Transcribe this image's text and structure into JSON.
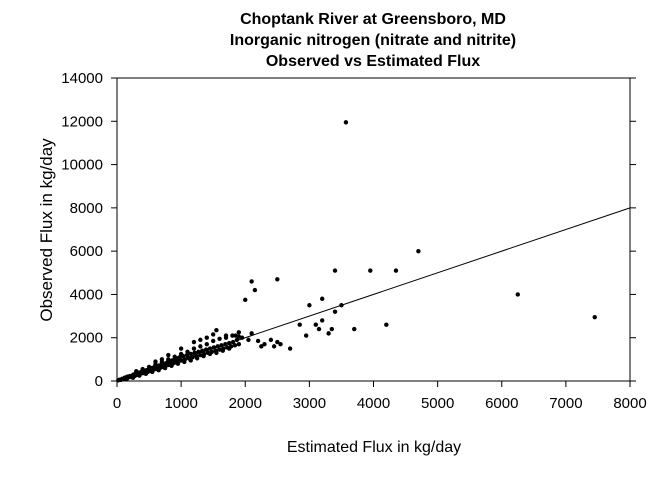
{
  "chart_data": {
    "type": "scatter",
    "title": "Choptank River at Greensboro, MD",
    "subtitle": "Inorganic nitrogen (nitrate and nitrite)",
    "subtitle2": "Observed vs Estimated Flux",
    "xlabel": "Estimated Flux in kg/day",
    "ylabel": "Observed Flux in kg/day",
    "xlim": [
      0,
      8000
    ],
    "ylim": [
      0,
      14000
    ],
    "xticks": [
      "0",
      "1000",
      "2000",
      "3000",
      "4000",
      "5000",
      "6000",
      "7000",
      "8000"
    ],
    "yticks": [
      "0",
      "2000",
      "4000",
      "6000",
      "8000",
      "10000",
      "12000",
      "14000"
    ],
    "grid": false,
    "reference_line": {
      "slope": 1,
      "intercept": 0
    },
    "points": [
      [
        20,
        30
      ],
      [
        40,
        60
      ],
      [
        60,
        50
      ],
      [
        80,
        100
      ],
      [
        100,
        90
      ],
      [
        120,
        150
      ],
      [
        140,
        120
      ],
      [
        160,
        200
      ],
      [
        180,
        170
      ],
      [
        200,
        230
      ],
      [
        220,
        180
      ],
      [
        240,
        260
      ],
      [
        260,
        300
      ],
      [
        280,
        240
      ],
      [
        300,
        330
      ],
      [
        320,
        280
      ],
      [
        340,
        390
      ],
      [
        360,
        330
      ],
      [
        380,
        420
      ],
      [
        400,
        360
      ],
      [
        420,
        450
      ],
      [
        440,
        400
      ],
      [
        460,
        500
      ],
      [
        480,
        420
      ],
      [
        500,
        540
      ],
      [
        520,
        470
      ],
      [
        540,
        600
      ],
      [
        560,
        500
      ],
      [
        580,
        640
      ],
      [
        600,
        550
      ],
      [
        620,
        680
      ],
      [
        640,
        580
      ],
      [
        660,
        720
      ],
      [
        680,
        620
      ],
      [
        700,
        760
      ],
      [
        720,
        650
      ],
      [
        740,
        800
      ],
      [
        760,
        700
      ],
      [
        780,
        850
      ],
      [
        800,
        740
      ],
      [
        820,
        900
      ],
      [
        840,
        780
      ],
      [
        860,
        950
      ],
      [
        880,
        820
      ],
      [
        900,
        1000
      ],
      [
        920,
        860
      ],
      [
        940,
        1050
      ],
      [
        960,
        900
      ],
      [
        980,
        1100
      ],
      [
        1000,
        950
      ],
      [
        1030,
        1150
      ],
      [
        1060,
        1000
      ],
      [
        1090,
        1200
      ],
      [
        1120,
        1050
      ],
      [
        1150,
        1250
      ],
      [
        1180,
        1100
      ],
      [
        1210,
        1300
      ],
      [
        1240,
        1150
      ],
      [
        1270,
        1350
      ],
      [
        1300,
        1200
      ],
      [
        1330,
        1400
      ],
      [
        1360,
        1250
      ],
      [
        1390,
        1450
      ],
      [
        1420,
        1300
      ],
      [
        1450,
        1500
      ],
      [
        1480,
        1350
      ],
      [
        1510,
        1550
      ],
      [
        1540,
        1400
      ],
      [
        1570,
        1600
      ],
      [
        1600,
        1450
      ],
      [
        1630,
        1650
      ],
      [
        1660,
        1500
      ],
      [
        1690,
        1700
      ],
      [
        1720,
        1550
      ],
      [
        1750,
        1750
      ],
      [
        1780,
        1600
      ],
      [
        1810,
        1800
      ],
      [
        1840,
        1650
      ],
      [
        1870,
        1900
      ],
      [
        1900,
        1700
      ],
      [
        150,
        80
      ],
      [
        250,
        150
      ],
      [
        350,
        250
      ],
      [
        450,
        330
      ],
      [
        550,
        420
      ],
      [
        650,
        500
      ],
      [
        750,
        600
      ],
      [
        850,
        700
      ],
      [
        950,
        800
      ],
      [
        1050,
        880
      ],
      [
        1150,
        950
      ],
      [
        1250,
        1050
      ],
      [
        1350,
        1150
      ],
      [
        1450,
        1250
      ],
      [
        1550,
        1300
      ],
      [
        1650,
        1400
      ],
      [
        1750,
        1500
      ],
      [
        300,
        450
      ],
      [
        400,
        550
      ],
      [
        500,
        650
      ],
      [
        600,
        780
      ],
      [
        700,
        880
      ],
      [
        800,
        1000
      ],
      [
        900,
        1120
      ],
      [
        1000,
        1250
      ],
      [
        1100,
        1350
      ],
      [
        1200,
        1500
      ],
      [
        1300,
        1600
      ],
      [
        1400,
        1700
      ],
      [
        1500,
        1850
      ],
      [
        1600,
        1950
      ],
      [
        1700,
        2000
      ],
      [
        1800,
        2100
      ],
      [
        1900,
        2050
      ],
      [
        600,
        900
      ],
      [
        700,
        1000
      ],
      [
        800,
        1200
      ],
      [
        1000,
        1500
      ],
      [
        1200,
        1800
      ],
      [
        1300,
        1900
      ],
      [
        1400,
        2000
      ],
      [
        1500,
        2150
      ],
      [
        1550,
        2350
      ],
      [
        1700,
        2100
      ],
      [
        1850,
        2100
      ],
      [
        1900,
        2250
      ],
      [
        1950,
        2000
      ],
      [
        2050,
        1900
      ],
      [
        2100,
        2200
      ],
      [
        2200,
        1850
      ],
      [
        2250,
        1600
      ],
      [
        2300,
        1700
      ],
      [
        2400,
        1900
      ],
      [
        2450,
        1600
      ],
      [
        2500,
        1800
      ],
      [
        2550,
        1700
      ],
      [
        2700,
        1500
      ],
      [
        2000,
        3750
      ],
      [
        2100,
        4600
      ],
      [
        2150,
        4200
      ],
      [
        2500,
        4700
      ],
      [
        2850,
        2600
      ],
      [
        2950,
        2100
      ],
      [
        3000,
        3500
      ],
      [
        3100,
        2600
      ],
      [
        3150,
        2400
      ],
      [
        3200,
        3800
      ],
      [
        3200,
        2800
      ],
      [
        3300,
        2200
      ],
      [
        3350,
        2400
      ],
      [
        3400,
        5100
      ],
      [
        3400,
        3200
      ],
      [
        3500,
        3500
      ],
      [
        3700,
        2400
      ],
      [
        3950,
        5100
      ],
      [
        4200,
        2600
      ],
      [
        4350,
        5100
      ],
      [
        4700,
        6000
      ],
      [
        3570,
        11950
      ],
      [
        6250,
        4000
      ],
      [
        7450,
        2950
      ]
    ]
  }
}
